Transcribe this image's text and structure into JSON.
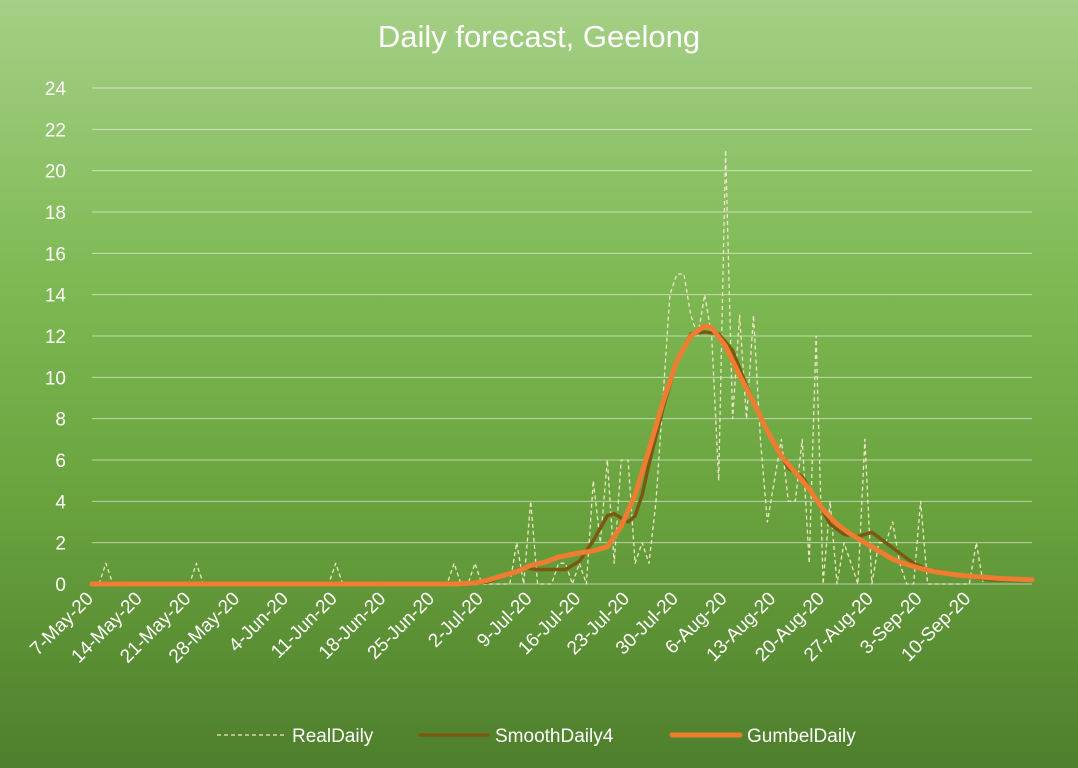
{
  "chart_data": {
    "type": "line",
    "title": "Daily forecast, Geelong",
    "xlabel": "",
    "ylabel": "",
    "ylim": [
      0,
      24
    ],
    "y_ticks": [
      0,
      2,
      4,
      6,
      8,
      10,
      12,
      14,
      16,
      18,
      20,
      22,
      24
    ],
    "x_start": "7-May-20",
    "x_end": "19-Sep-20",
    "x_tick_labels": [
      "7-May-20",
      "14-May-20",
      "21-May-20",
      "28-May-20",
      "4-Jun-20",
      "11-Jun-20",
      "18-Jun-20",
      "25-Jun-20",
      "2-Jul-20",
      "9-Jul-20",
      "16-Jul-20",
      "23-Jul-20",
      "30-Jul-20",
      "6-Aug-20",
      "13-Aug-20",
      "20-Aug-20",
      "27-Aug-20",
      "3-Sep-20",
      "10-Sep-20"
    ],
    "grid": "horizontal",
    "legend_position": "bottom",
    "series": [
      {
        "name": "RealDaily",
        "color": "#efe6c4",
        "style": "dashed",
        "points": [
          [
            "7-May-20",
            0
          ],
          [
            "8-May-20",
            0
          ],
          [
            "9-May-20",
            1
          ],
          [
            "10-May-20",
            0
          ],
          [
            "21-May-20",
            0
          ],
          [
            "22-May-20",
            1
          ],
          [
            "23-May-20",
            0
          ],
          [
            "10-Jun-20",
            0
          ],
          [
            "11-Jun-20",
            1
          ],
          [
            "12-Jun-20",
            0
          ],
          [
            "27-Jun-20",
            0
          ],
          [
            "28-Jun-20",
            1
          ],
          [
            "29-Jun-20",
            0
          ],
          [
            "30-Jun-20",
            0
          ],
          [
            "1-Jul-20",
            1
          ],
          [
            "2-Jul-20",
            0
          ],
          [
            "3-Jul-20",
            0
          ],
          [
            "4-Jul-20",
            0
          ],
          [
            "5-Jul-20",
            0
          ],
          [
            "6-Jul-20",
            0
          ],
          [
            "7-Jul-20",
            2
          ],
          [
            "8-Jul-20",
            0
          ],
          [
            "9-Jul-20",
            4
          ],
          [
            "10-Jul-20",
            0
          ],
          [
            "11-Jul-20",
            0
          ],
          [
            "12-Jul-20",
            0
          ],
          [
            "13-Jul-20",
            1
          ],
          [
            "14-Jul-20",
            1
          ],
          [
            "15-Jul-20",
            0
          ],
          [
            "16-Jul-20",
            1
          ],
          [
            "17-Jul-20",
            0
          ],
          [
            "18-Jul-20",
            5
          ],
          [
            "19-Jul-20",
            2
          ],
          [
            "20-Jul-20",
            6
          ],
          [
            "21-Jul-20",
            1
          ],
          [
            "22-Jul-20",
            6
          ],
          [
            "23-Jul-20",
            6
          ],
          [
            "24-Jul-20",
            1
          ],
          [
            "25-Jul-20",
            2
          ],
          [
            "26-Jul-20",
            1
          ],
          [
            "27-Jul-20",
            4
          ],
          [
            "28-Jul-20",
            9
          ],
          [
            "29-Jul-20",
            14
          ],
          [
            "30-Jul-20",
            15
          ],
          [
            "31-Jul-20",
            15
          ],
          [
            "1-Aug-20",
            13
          ],
          [
            "2-Aug-20",
            12
          ],
          [
            "3-Aug-20",
            14
          ],
          [
            "4-Aug-20",
            12
          ],
          [
            "5-Aug-20",
            5
          ],
          [
            "6-Aug-20",
            21
          ],
          [
            "7-Aug-20",
            8
          ],
          [
            "8-Aug-20",
            13
          ],
          [
            "9-Aug-20",
            8
          ],
          [
            "10-Aug-20",
            13
          ],
          [
            "11-Aug-20",
            7
          ],
          [
            "12-Aug-20",
            3
          ],
          [
            "13-Aug-20",
            5
          ],
          [
            "14-Aug-20",
            7
          ],
          [
            "15-Aug-20",
            4
          ],
          [
            "16-Aug-20",
            4
          ],
          [
            "17-Aug-20",
            7
          ],
          [
            "18-Aug-20",
            1
          ],
          [
            "19-Aug-20",
            12
          ],
          [
            "20-Aug-20",
            0
          ],
          [
            "21-Aug-20",
            4
          ],
          [
            "22-Aug-20",
            0
          ],
          [
            "23-Aug-20",
            2
          ],
          [
            "24-Aug-20",
            1
          ],
          [
            "25-Aug-20",
            0
          ],
          [
            "26-Aug-20",
            7
          ],
          [
            "27-Aug-20",
            0
          ],
          [
            "28-Aug-20",
            2
          ],
          [
            "29-Aug-20",
            2
          ],
          [
            "30-Aug-20",
            3
          ],
          [
            "31-Aug-20",
            1
          ],
          [
            "1-Sep-20",
            0
          ],
          [
            "2-Sep-20",
            0
          ],
          [
            "3-Sep-20",
            4
          ],
          [
            "4-Sep-20",
            0
          ],
          [
            "5-Sep-20",
            0
          ],
          [
            "6-Sep-20",
            0
          ],
          [
            "7-Sep-20",
            0
          ],
          [
            "8-Sep-20",
            0
          ],
          [
            "9-Sep-20",
            0
          ],
          [
            "10-Sep-20",
            0
          ],
          [
            "11-Sep-20",
            2
          ],
          [
            "12-Sep-20",
            0
          ]
        ]
      },
      {
        "name": "SmoothDaily4",
        "color": "#7a5a12",
        "style": "solid",
        "points": [
          [
            "7-May-20",
            0
          ],
          [
            "30-Jun-20",
            0
          ],
          [
            "3-Jul-20",
            0.1
          ],
          [
            "6-Jul-20",
            0.5
          ],
          [
            "8-Jul-20",
            0.8
          ],
          [
            "10-Jul-20",
            0.7
          ],
          [
            "12-Jul-20",
            0.7
          ],
          [
            "14-Jul-20",
            0.7
          ],
          [
            "16-Jul-20",
            1.1
          ],
          [
            "18-Jul-20",
            2.1
          ],
          [
            "20-Jul-20",
            3.3
          ],
          [
            "21-Jul-20",
            3.4
          ],
          [
            "22-Jul-20",
            3.2
          ],
          [
            "23-Jul-20",
            3.0
          ],
          [
            "24-Jul-20",
            3.3
          ],
          [
            "25-Jul-20",
            4.3
          ],
          [
            "26-Jul-20",
            5.8
          ],
          [
            "28-Jul-20",
            8.5
          ],
          [
            "30-Jul-20",
            10.8
          ],
          [
            "1-Aug-20",
            12.1
          ],
          [
            "3-Aug-20",
            12.2
          ],
          [
            "5-Aug-20",
            12.1
          ],
          [
            "7-Aug-20",
            11.3
          ],
          [
            "9-Aug-20",
            9.6
          ],
          [
            "11-Aug-20",
            8.1
          ],
          [
            "13-Aug-20",
            6.8
          ],
          [
            "15-Aug-20",
            5.6
          ],
          [
            "17-Aug-20",
            5.2
          ],
          [
            "19-Aug-20",
            4.1
          ],
          [
            "21-Aug-20",
            2.9
          ],
          [
            "23-Aug-20",
            2.4
          ],
          [
            "25-Aug-20",
            2.3
          ],
          [
            "27-Aug-20",
            2.5
          ],
          [
            "29-Aug-20",
            2.0
          ],
          [
            "31-Aug-20",
            1.5
          ],
          [
            "2-Sep-20",
            1.0
          ],
          [
            "4-Sep-20",
            0.7
          ],
          [
            "6-Sep-20",
            0.6
          ],
          [
            "9-Sep-20",
            0.4
          ],
          [
            "13-Sep-20",
            0.2
          ],
          [
            "19-Sep-20",
            0.15
          ]
        ]
      },
      {
        "name": "GumbelDaily",
        "color": "#ee7d31",
        "style": "solid",
        "points": [
          [
            "7-May-20",
            0
          ],
          [
            "28-Jun-20",
            0
          ],
          [
            "1-Jul-20",
            0.05
          ],
          [
            "3-Jul-20",
            0.2
          ],
          [
            "5-Jul-20",
            0.4
          ],
          [
            "7-Jul-20",
            0.6
          ],
          [
            "9-Jul-20",
            0.9
          ],
          [
            "11-Jul-20",
            1.05
          ],
          [
            "13-Jul-20",
            1.3
          ],
          [
            "16-Jul-20",
            1.5
          ],
          [
            "18-Jul-20",
            1.6
          ],
          [
            "20-Jul-20",
            1.8
          ],
          [
            "22-Jul-20",
            2.8
          ],
          [
            "24-Jul-20",
            4.3
          ],
          [
            "26-Jul-20",
            6.5
          ],
          [
            "28-Jul-20",
            8.8
          ],
          [
            "30-Jul-20",
            10.8
          ],
          [
            "1-Aug-20",
            12.0
          ],
          [
            "3-Aug-20",
            12.5
          ],
          [
            "4-Aug-20",
            12.4
          ],
          [
            "6-Aug-20",
            11.5
          ],
          [
            "8-Aug-20",
            10.1
          ],
          [
            "10-Aug-20",
            8.8
          ],
          [
            "12-Aug-20",
            7.4
          ],
          [
            "14-Aug-20",
            6.2
          ],
          [
            "16-Aug-20",
            5.4
          ],
          [
            "18-Aug-20",
            4.6
          ],
          [
            "20-Aug-20",
            3.6
          ],
          [
            "22-Aug-20",
            2.9
          ],
          [
            "24-Aug-20",
            2.4
          ],
          [
            "26-Aug-20",
            2.0
          ],
          [
            "28-Aug-20",
            1.6
          ],
          [
            "30-Aug-20",
            1.2
          ],
          [
            "1-Sep-20",
            0.95
          ],
          [
            "3-Sep-20",
            0.75
          ],
          [
            "5-Sep-20",
            0.6
          ],
          [
            "8-Sep-20",
            0.45
          ],
          [
            "11-Sep-20",
            0.35
          ],
          [
            "15-Sep-20",
            0.25
          ],
          [
            "19-Sep-20",
            0.2
          ]
        ]
      }
    ]
  }
}
